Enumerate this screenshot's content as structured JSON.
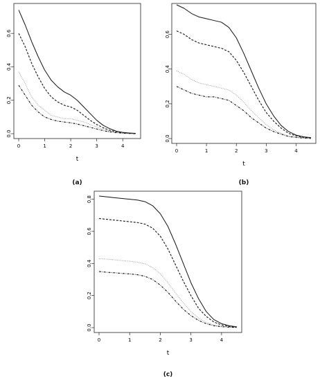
{
  "chart_data": [
    {
      "type": "line",
      "caption": "(a)",
      "xlabel": "t",
      "xlim": [
        0,
        4.5
      ],
      "ylim": [
        0,
        0.75
      ],
      "xticks": [
        0,
        1,
        2,
        3,
        4
      ],
      "yticks": [
        0.0,
        0.2,
        0.4,
        0.6
      ],
      "grid": false,
      "series": [
        {
          "style": "solid",
          "x": [
            0,
            0.25,
            0.5,
            0.75,
            1,
            1.25,
            1.5,
            1.75,
            2,
            2.25,
            2.5,
            2.75,
            3,
            3.25,
            3.5,
            3.75,
            4,
            4.25,
            4.5
          ],
          "y": [
            0.74,
            0.65,
            0.55,
            0.46,
            0.38,
            0.32,
            0.28,
            0.25,
            0.23,
            0.2,
            0.16,
            0.12,
            0.08,
            0.05,
            0.03,
            0.015,
            0.008,
            0.004,
            0.002
          ]
        },
        {
          "style": "dashed",
          "x": [
            0,
            0.25,
            0.5,
            0.75,
            1,
            1.25,
            1.5,
            1.75,
            2,
            2.25,
            2.5,
            2.75,
            3,
            3.25,
            3.5,
            3.75,
            4,
            4.25,
            4.5
          ],
          "y": [
            0.6,
            0.52,
            0.42,
            0.34,
            0.27,
            0.22,
            0.19,
            0.17,
            0.16,
            0.14,
            0.11,
            0.08,
            0.055,
            0.035,
            0.02,
            0.012,
            0.006,
            0.003,
            0.001
          ]
        },
        {
          "style": "dotted",
          "x": [
            0,
            0.25,
            0.5,
            0.75,
            1,
            1.25,
            1.5,
            1.75,
            2,
            2.25,
            2.5,
            2.75,
            3,
            3.25,
            3.5,
            3.75,
            4,
            4.25,
            4.5
          ],
          "y": [
            0.37,
            0.3,
            0.22,
            0.17,
            0.14,
            0.11,
            0.1,
            0.09,
            0.09,
            0.08,
            0.07,
            0.055,
            0.04,
            0.025,
            0.015,
            0.008,
            0.004,
            0.002,
            0.001
          ]
        },
        {
          "style": "dotdash",
          "x": [
            0,
            0.25,
            0.5,
            0.75,
            1,
            1.25,
            1.5,
            1.75,
            2,
            2.25,
            2.5,
            2.75,
            3,
            3.25,
            3.5,
            3.75,
            4,
            4.25,
            4.5
          ],
          "y": [
            0.29,
            0.23,
            0.17,
            0.13,
            0.1,
            0.085,
            0.075,
            0.07,
            0.065,
            0.058,
            0.048,
            0.038,
            0.028,
            0.018,
            0.011,
            0.006,
            0.003,
            0.001,
            0.0
          ]
        }
      ]
    },
    {
      "type": "line",
      "caption": "(b)",
      "xlabel": "t",
      "xlim": [
        0,
        4.5
      ],
      "ylim": [
        0,
        0.75
      ],
      "xticks": [
        0,
        1,
        2,
        3,
        4
      ],
      "yticks": [
        0.0,
        0.2,
        0.4,
        0.6
      ],
      "grid": false,
      "series": [
        {
          "style": "solid",
          "x": [
            0,
            0.25,
            0.5,
            0.75,
            1,
            1.25,
            1.5,
            1.75,
            2,
            2.25,
            2.5,
            2.75,
            3,
            3.25,
            3.5,
            3.75,
            4,
            4.25,
            4.5
          ],
          "y": [
            0.77,
            0.75,
            0.72,
            0.7,
            0.69,
            0.68,
            0.67,
            0.64,
            0.58,
            0.49,
            0.39,
            0.29,
            0.2,
            0.13,
            0.075,
            0.04,
            0.02,
            0.01,
            0.005
          ]
        },
        {
          "style": "dashed",
          "x": [
            0,
            0.25,
            0.5,
            0.75,
            1,
            1.25,
            1.5,
            1.75,
            2,
            2.25,
            2.5,
            2.75,
            3,
            3.25,
            3.5,
            3.75,
            4,
            4.25,
            4.5
          ],
          "y": [
            0.62,
            0.6,
            0.57,
            0.55,
            0.54,
            0.53,
            0.52,
            0.5,
            0.45,
            0.38,
            0.3,
            0.22,
            0.15,
            0.1,
            0.06,
            0.03,
            0.015,
            0.007,
            0.003
          ]
        },
        {
          "style": "dotted",
          "x": [
            0,
            0.25,
            0.5,
            0.75,
            1,
            1.25,
            1.5,
            1.75,
            2,
            2.25,
            2.5,
            2.75,
            3,
            3.25,
            3.5,
            3.75,
            4,
            4.25,
            4.5
          ],
          "y": [
            0.39,
            0.37,
            0.34,
            0.32,
            0.31,
            0.3,
            0.29,
            0.28,
            0.25,
            0.21,
            0.16,
            0.12,
            0.08,
            0.05,
            0.03,
            0.015,
            0.008,
            0.004,
            0.002
          ]
        },
        {
          "style": "dotdash",
          "x": [
            0,
            0.25,
            0.5,
            0.75,
            1,
            1.25,
            1.5,
            1.75,
            2,
            2.25,
            2.5,
            2.75,
            3,
            3.25,
            3.5,
            3.75,
            4,
            4.25,
            4.5
          ],
          "y": [
            0.3,
            0.28,
            0.26,
            0.25,
            0.24,
            0.24,
            0.23,
            0.22,
            0.19,
            0.16,
            0.12,
            0.09,
            0.06,
            0.04,
            0.025,
            0.012,
            0.006,
            0.003,
            0.001
          ]
        }
      ]
    },
    {
      "type": "line",
      "caption": "(c)",
      "xlabel": "t",
      "xlim": [
        0,
        4.5
      ],
      "ylim": [
        0,
        0.82
      ],
      "xticks": [
        0,
        1,
        2,
        3,
        4
      ],
      "yticks": [
        0.0,
        0.2,
        0.4,
        0.6,
        0.8
      ],
      "grid": false,
      "series": [
        {
          "style": "solid",
          "x": [
            0,
            0.25,
            0.5,
            0.75,
            1,
            1.25,
            1.5,
            1.75,
            2,
            2.25,
            2.5,
            2.75,
            3,
            3.25,
            3.5,
            3.75,
            4,
            4.25,
            4.5
          ],
          "y": [
            0.82,
            0.815,
            0.81,
            0.805,
            0.8,
            0.795,
            0.785,
            0.76,
            0.71,
            0.63,
            0.52,
            0.4,
            0.28,
            0.18,
            0.1,
            0.05,
            0.025,
            0.012,
            0.005
          ]
        },
        {
          "style": "dashed",
          "x": [
            0,
            0.25,
            0.5,
            0.75,
            1,
            1.25,
            1.5,
            1.75,
            2,
            2.25,
            2.5,
            2.75,
            3,
            3.25,
            3.5,
            3.75,
            4,
            4.25,
            4.5
          ],
          "y": [
            0.68,
            0.675,
            0.67,
            0.665,
            0.66,
            0.655,
            0.645,
            0.62,
            0.57,
            0.49,
            0.39,
            0.29,
            0.2,
            0.12,
            0.07,
            0.035,
            0.017,
            0.008,
            0.003
          ]
        },
        {
          "style": "dotted",
          "x": [
            0,
            0.25,
            0.5,
            0.75,
            1,
            1.25,
            1.5,
            1.75,
            2,
            2.25,
            2.5,
            2.75,
            3,
            3.25,
            3.5,
            3.75,
            4,
            4.25,
            4.5
          ],
          "y": [
            0.43,
            0.427,
            0.423,
            0.418,
            0.414,
            0.408,
            0.398,
            0.375,
            0.335,
            0.28,
            0.215,
            0.155,
            0.1,
            0.06,
            0.033,
            0.016,
            0.008,
            0.004,
            0.002
          ]
        },
        {
          "style": "dotdash",
          "x": [
            0,
            0.25,
            0.5,
            0.75,
            1,
            1.25,
            1.5,
            1.75,
            2,
            2.25,
            2.5,
            2.75,
            3,
            3.25,
            3.5,
            3.75,
            4,
            4.25,
            4.5
          ],
          "y": [
            0.35,
            0.345,
            0.342,
            0.338,
            0.335,
            0.33,
            0.32,
            0.3,
            0.265,
            0.22,
            0.165,
            0.115,
            0.075,
            0.045,
            0.025,
            0.012,
            0.006,
            0.003,
            0.001
          ]
        }
      ]
    }
  ]
}
